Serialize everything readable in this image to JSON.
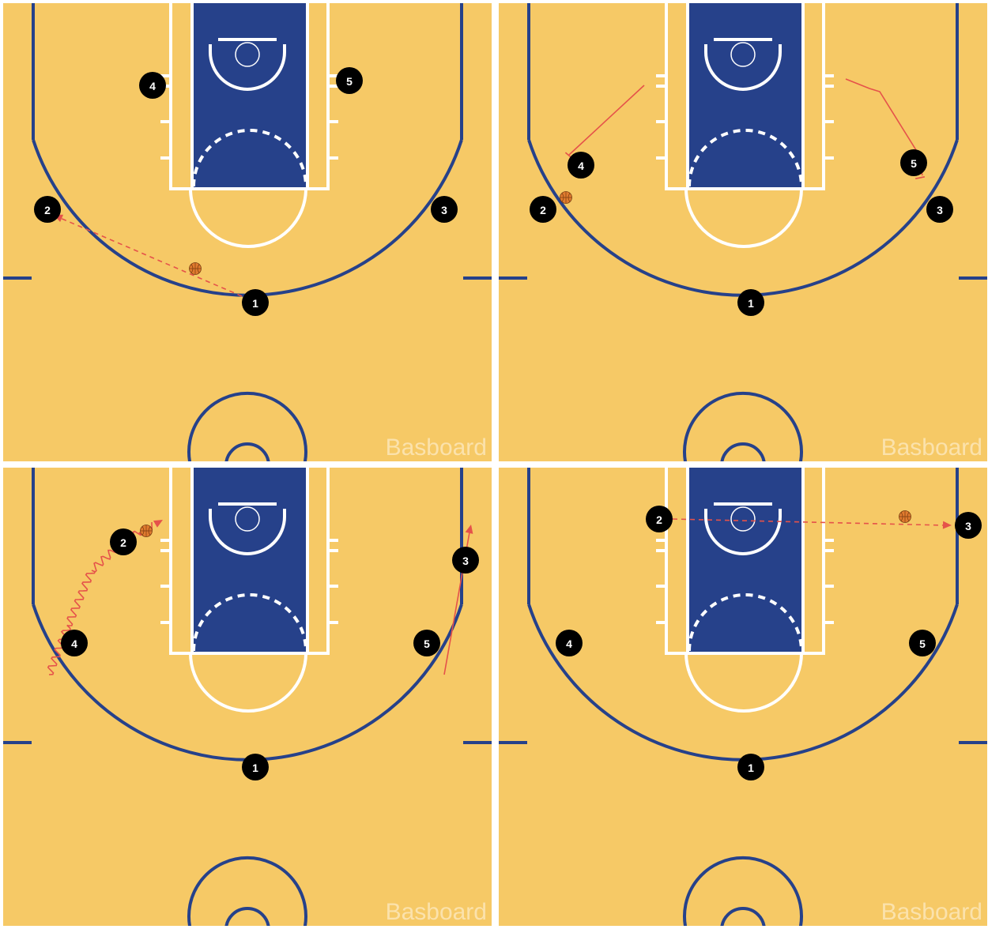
{
  "app": {
    "watermark": "Basboard"
  },
  "colors": {
    "court": "#f6c966",
    "paint": "#26418a",
    "lines": "#26418a",
    "paint_lines": "#ffffff",
    "player_fill": "#000000",
    "player_text": "#ffffff",
    "movement": "#e5524a",
    "ball": "#e07b2e"
  },
  "frames": [
    {
      "step": 1,
      "players": [
        "1",
        "2",
        "3",
        "4",
        "5"
      ],
      "actions": [
        "pass 1 to 2"
      ]
    },
    {
      "step": 2,
      "players": [
        "1",
        "2",
        "3",
        "4",
        "5"
      ],
      "actions": [
        "screen 4 for 2",
        "screen 5 for 3"
      ]
    },
    {
      "step": 3,
      "players": [
        "1",
        "2",
        "3",
        "4",
        "5"
      ],
      "actions": [
        "dribble 2 to baseline",
        "cut 3 to corner"
      ]
    },
    {
      "step": 4,
      "players": [
        "1",
        "2",
        "3",
        "4",
        "5"
      ],
      "actions": [
        "pass 2 to 3"
      ]
    }
  ]
}
